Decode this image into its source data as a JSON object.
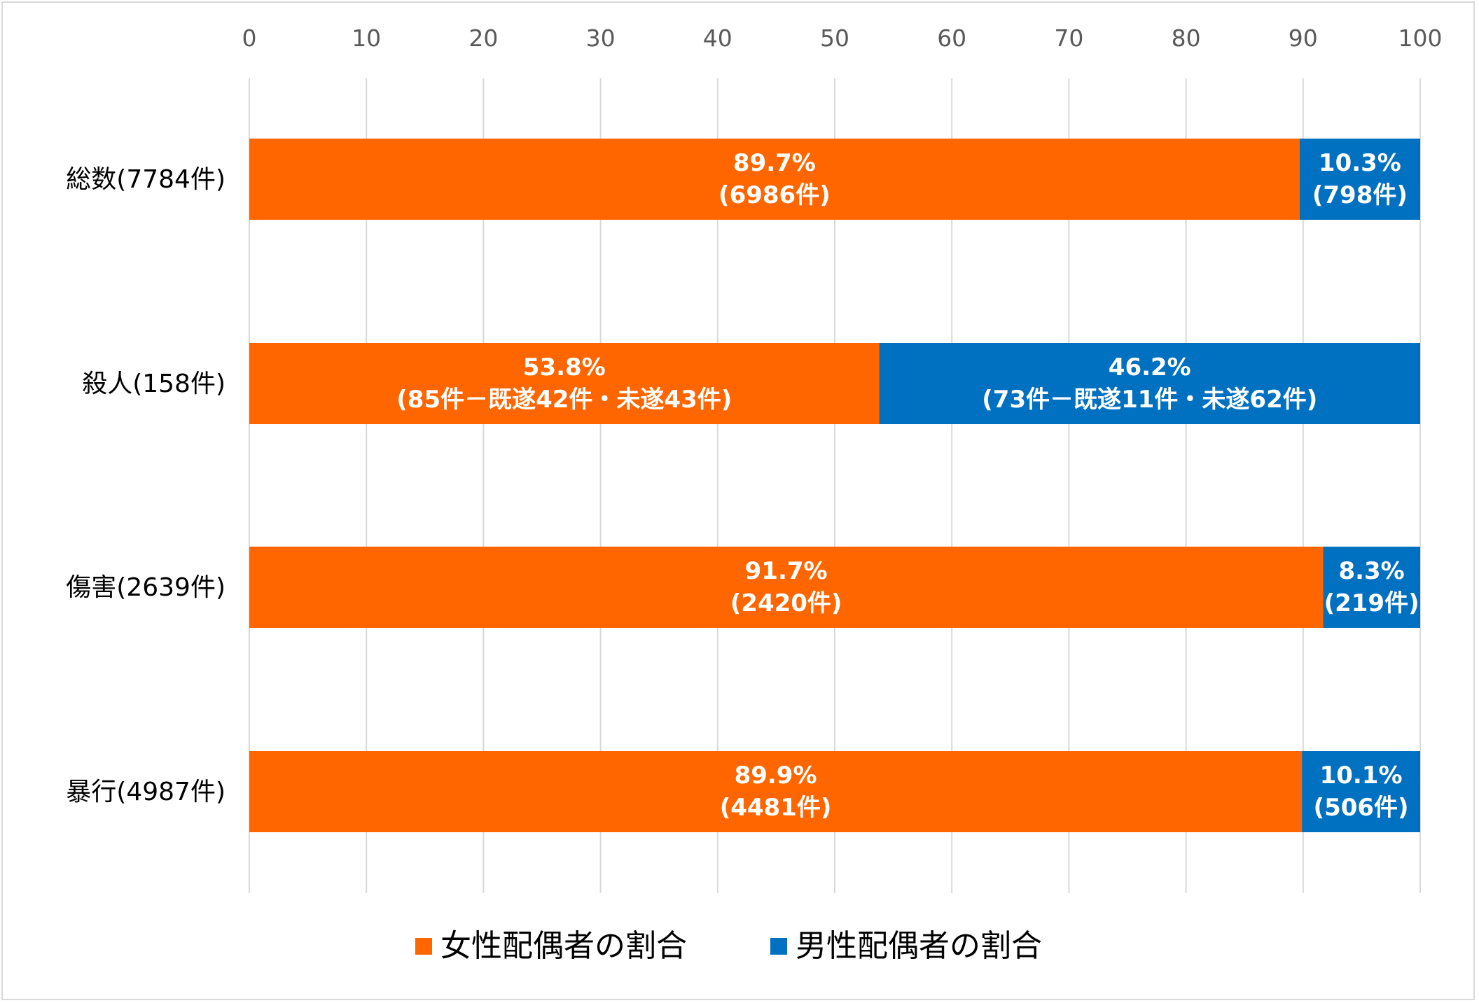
{
  "chart_data": {
    "type": "bar",
    "orientation": "horizontal",
    "stacked": true,
    "title": "",
    "xlabel": "",
    "ylabel": "",
    "xlim": [
      0,
      100
    ],
    "x_ticks": [
      "0",
      "10",
      "20",
      "30",
      "40",
      "50",
      "60",
      "70",
      "80",
      "90",
      "100"
    ],
    "grid": true,
    "legend_position": "bottom",
    "categories": [
      "総数(7784件)",
      "殺人(158件)",
      "傷害(2639件)",
      "暴行(4987件)"
    ],
    "series": [
      {
        "name": "女性配偶者の割合",
        "color": "#ff6600",
        "values": [
          89.7,
          53.8,
          91.7,
          89.9
        ],
        "labels": [
          [
            "89.7%",
            "(6986件)"
          ],
          [
            "53.8%",
            "(85件－既遂42件・未遂43件)"
          ],
          [
            "91.7%",
            "(2420件)"
          ],
          [
            "89.9%",
            "(4481件)"
          ]
        ]
      },
      {
        "name": "男性配偶者の割合",
        "color": "#0070c0",
        "values": [
          10.3,
          46.2,
          8.3,
          10.1
        ],
        "labels": [
          [
            "10.3%",
            "(798件)"
          ],
          [
            "46.2%",
            "(73件－既遂11件・未遂62件)"
          ],
          [
            "8.3%",
            "(219件)"
          ],
          [
            "10.1%",
            "(506件)"
          ]
        ]
      }
    ]
  }
}
